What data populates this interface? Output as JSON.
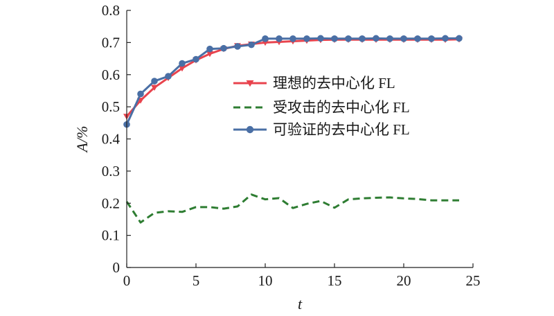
{
  "chart_data": {
    "type": "line",
    "xlabel": "t",
    "ylabel": "A/%",
    "xlim": [
      0,
      25
    ],
    "ylim": [
      0,
      0.8
    ],
    "x_ticks": [
      "0",
      "5",
      "10",
      "15",
      "20",
      "25"
    ],
    "y_ticks": [
      "0",
      "0.1",
      "0.2",
      "0.3",
      "0.4",
      "0.5",
      "0.6",
      "0.7",
      "0.8"
    ],
    "grid": false,
    "legend_position": "right, upper-middle",
    "x": [
      0,
      1,
      2,
      3,
      4,
      5,
      6,
      7,
      8,
      9,
      10,
      11,
      12,
      13,
      14,
      15,
      16,
      17,
      18,
      19,
      20,
      21,
      22,
      23,
      24
    ],
    "series": [
      {
        "name": "理想的去中心化 FL",
        "color": "#e8434d",
        "line_style": "solid",
        "marker": "triangle-down",
        "values": [
          0.47,
          0.52,
          0.56,
          0.59,
          0.62,
          0.645,
          0.665,
          0.68,
          0.69,
          0.695,
          0.7,
          0.702,
          0.704,
          0.706,
          0.708,
          0.709,
          0.709,
          0.709,
          0.709,
          0.709,
          0.709,
          0.709,
          0.709,
          0.709,
          0.71
        ]
      },
      {
        "name": "受攻击的去中心化 FL",
        "color": "#2e7d32",
        "line_style": "dashed",
        "marker": "none",
        "values": [
          0.205,
          0.14,
          0.17,
          0.175,
          0.173,
          0.188,
          0.188,
          0.183,
          0.19,
          0.227,
          0.212,
          0.216,
          0.185,
          0.198,
          0.207,
          0.186,
          0.212,
          0.215,
          0.217,
          0.218,
          0.215,
          0.213,
          0.209,
          0.209,
          0.209
        ]
      },
      {
        "name": "可验证的去中心化 FL",
        "color": "#4a6fa5",
        "line_style": "solid",
        "marker": "circle",
        "values": [
          0.445,
          0.54,
          0.58,
          0.595,
          0.635,
          0.648,
          0.68,
          0.682,
          0.688,
          0.693,
          0.712,
          0.712,
          0.712,
          0.712,
          0.713,
          0.712,
          0.712,
          0.712,
          0.713,
          0.712,
          0.712,
          0.712,
          0.712,
          0.713,
          0.713
        ]
      }
    ]
  }
}
